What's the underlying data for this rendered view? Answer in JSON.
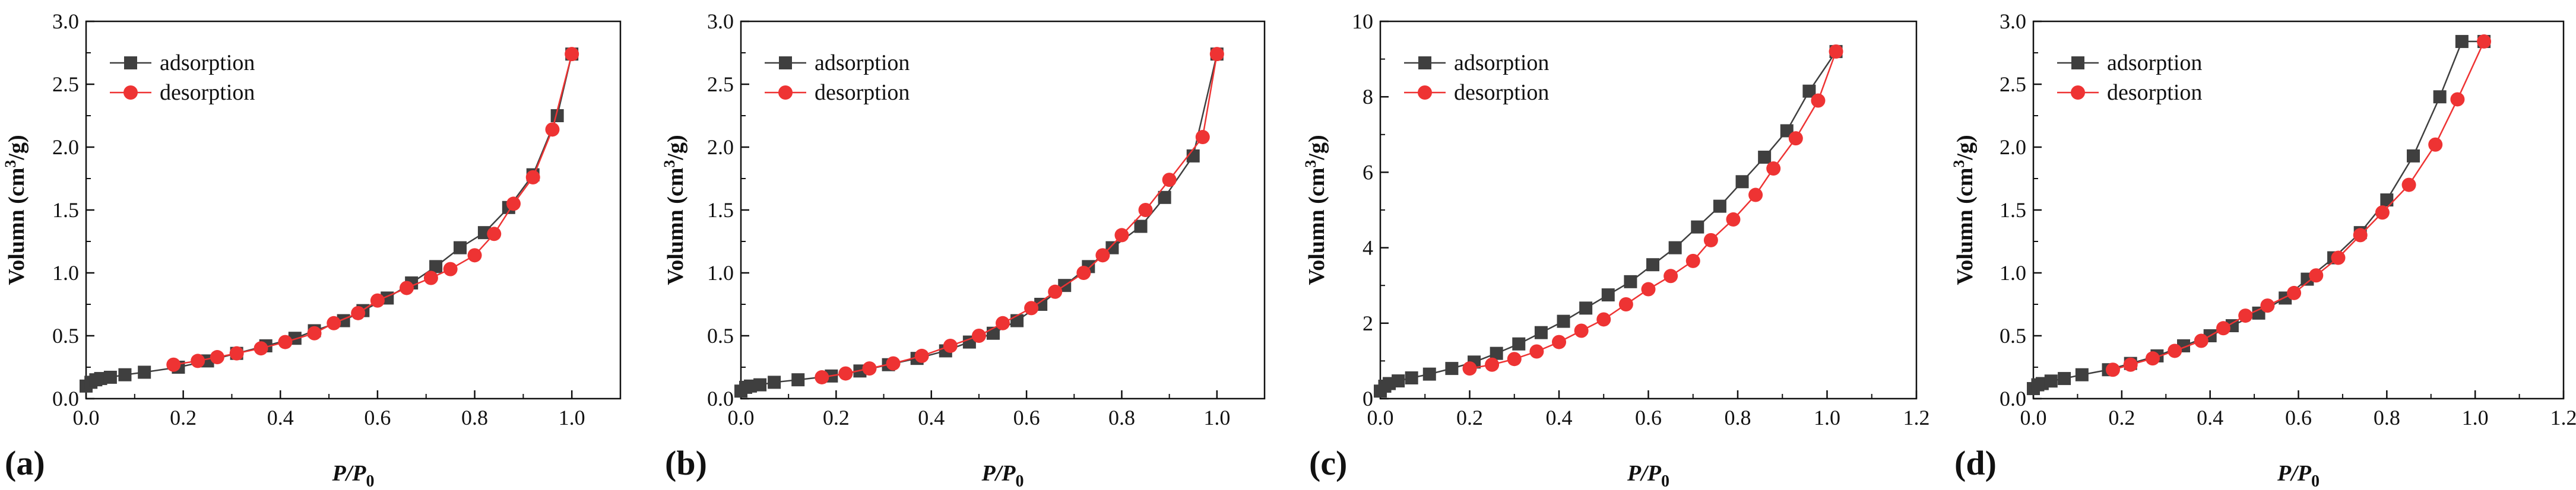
{
  "colors": {
    "adsorption": "#3f3f3f",
    "desorption": "#ee3333",
    "axis": "#111111"
  },
  "chart_data": [
    {
      "type": "line",
      "panel_label": "(a)",
      "xlabel": "P/P0",
      "xlabel_italic": "P/P",
      "xlabel_sub": "0",
      "ylabel": "Volumn (cm3/g)",
      "ylabel_pre": "Volumn (cm",
      "ylabel_sup": "3",
      "ylabel_post": "/g)",
      "xlim": [
        0,
        1.1
      ],
      "ylim": [
        0,
        3.0
      ],
      "xticks": [
        "0.0",
        "0.2",
        "0.4",
        "0.6",
        "0.8",
        "1.0"
      ],
      "yticks": [
        "0.0",
        "0.5",
        "1.0",
        "1.5",
        "2.0",
        "2.5",
        "3.0"
      ],
      "legend": [
        "adsorption",
        "desorption"
      ],
      "series": [
        {
          "name": "adsorption",
          "marker": "square",
          "x": [
            0.0,
            0.01,
            0.02,
            0.03,
            0.05,
            0.08,
            0.12,
            0.19,
            0.25,
            0.31,
            0.37,
            0.43,
            0.47,
            0.53,
            0.57,
            0.62,
            0.67,
            0.72,
            0.77,
            0.82,
            0.87,
            0.92,
            0.97,
            1.0
          ],
          "y": [
            0.1,
            0.13,
            0.15,
            0.16,
            0.17,
            0.19,
            0.21,
            0.25,
            0.3,
            0.36,
            0.42,
            0.48,
            0.54,
            0.62,
            0.7,
            0.8,
            0.92,
            1.05,
            1.2,
            1.32,
            1.52,
            1.78,
            2.25,
            2.74
          ]
        },
        {
          "name": "desorption",
          "marker": "circle",
          "x": [
            1.0,
            0.96,
            0.92,
            0.88,
            0.84,
            0.8,
            0.75,
            0.71,
            0.66,
            0.6,
            0.56,
            0.51,
            0.47,
            0.41,
            0.36,
            0.31,
            0.27,
            0.23,
            0.18
          ],
          "y": [
            2.74,
            2.14,
            1.76,
            1.55,
            1.31,
            1.14,
            1.03,
            0.96,
            0.88,
            0.78,
            0.68,
            0.6,
            0.52,
            0.45,
            0.4,
            0.36,
            0.33,
            0.3,
            0.27
          ]
        }
      ]
    },
    {
      "type": "line",
      "panel_label": "(b)",
      "xlabel": "P/P0",
      "xlabel_italic": "P/P",
      "xlabel_sub": "0",
      "ylabel": "Volumn (cm3/g)",
      "ylabel_pre": "Volumn (cm",
      "ylabel_sup": "3",
      "ylabel_post": "/g)",
      "xlim": [
        0,
        1.1
      ],
      "ylim": [
        0,
        3.0
      ],
      "xticks": [
        "0.0",
        "0.2",
        "0.4",
        "0.6",
        "0.8",
        "1.0"
      ],
      "yticks": [
        "0.0",
        "0.5",
        "1.0",
        "1.5",
        "2.0",
        "2.5",
        "3.0"
      ],
      "legend": [
        "adsorption",
        "desorption"
      ],
      "series": [
        {
          "name": "adsorption",
          "marker": "square",
          "x": [
            0.0,
            0.01,
            0.02,
            0.04,
            0.07,
            0.12,
            0.19,
            0.25,
            0.31,
            0.37,
            0.43,
            0.48,
            0.53,
            0.58,
            0.63,
            0.68,
            0.73,
            0.78,
            0.84,
            0.89,
            0.95,
            1.0
          ],
          "y": [
            0.06,
            0.09,
            0.1,
            0.11,
            0.13,
            0.15,
            0.18,
            0.22,
            0.27,
            0.32,
            0.38,
            0.45,
            0.52,
            0.62,
            0.75,
            0.9,
            1.05,
            1.2,
            1.37,
            1.6,
            1.93,
            2.74
          ]
        },
        {
          "name": "desorption",
          "marker": "circle",
          "x": [
            1.0,
            0.97,
            0.9,
            0.85,
            0.8,
            0.76,
            0.72,
            0.66,
            0.61,
            0.55,
            0.5,
            0.44,
            0.38,
            0.32,
            0.27,
            0.22,
            0.17
          ],
          "y": [
            2.74,
            2.08,
            1.74,
            1.5,
            1.3,
            1.14,
            1.0,
            0.85,
            0.72,
            0.6,
            0.5,
            0.42,
            0.34,
            0.28,
            0.24,
            0.2,
            0.17
          ]
        }
      ]
    },
    {
      "type": "line",
      "panel_label": "(c)",
      "xlabel": "P/P0",
      "xlabel_italic": "P/P",
      "xlabel_sub": "0",
      "ylabel": "Volumn (cm3/g)",
      "ylabel_pre": "Volumn (cm",
      "ylabel_sup": "3",
      "ylabel_post": "/g)",
      "xlim": [
        0,
        1.2
      ],
      "ylim": [
        0,
        10
      ],
      "xticks": [
        "0.0",
        "0.2",
        "0.4",
        "0.6",
        "0.8",
        "1.0",
        "1.2"
      ],
      "yticks": [
        "0",
        "2",
        "4",
        "6",
        "8",
        "10"
      ],
      "legend": [
        "adsorption",
        "desorption"
      ],
      "series": [
        {
          "name": "adsorption",
          "marker": "square",
          "x": [
            0.0,
            0.01,
            0.02,
            0.04,
            0.07,
            0.11,
            0.16,
            0.21,
            0.26,
            0.31,
            0.36,
            0.41,
            0.46,
            0.51,
            0.56,
            0.61,
            0.66,
            0.71,
            0.76,
            0.81,
            0.86,
            0.91,
            0.96,
            1.02
          ],
          "y": [
            0.2,
            0.33,
            0.4,
            0.47,
            0.55,
            0.65,
            0.8,
            0.97,
            1.2,
            1.45,
            1.75,
            2.05,
            2.4,
            2.75,
            3.1,
            3.55,
            4.0,
            4.55,
            5.1,
            5.75,
            6.4,
            7.1,
            8.15,
            9.2
          ]
        },
        {
          "name": "desorption",
          "marker": "circle",
          "x": [
            1.02,
            0.98,
            0.93,
            0.88,
            0.84,
            0.79,
            0.74,
            0.7,
            0.65,
            0.6,
            0.55,
            0.5,
            0.45,
            0.4,
            0.35,
            0.3,
            0.25,
            0.2
          ],
          "y": [
            9.2,
            7.9,
            6.9,
            6.1,
            5.4,
            4.75,
            4.2,
            3.65,
            3.25,
            2.9,
            2.5,
            2.1,
            1.8,
            1.5,
            1.25,
            1.05,
            0.9,
            0.8
          ]
        }
      ]
    },
    {
      "type": "line",
      "panel_label": "(d)",
      "xlabel": "P/P0",
      "xlabel_italic": "P/P",
      "xlabel_sub": "0",
      "ylabel": "Volumn (cm3/g)",
      "ylabel_pre": "Volumn (cm",
      "ylabel_sup": "3",
      "ylabel_post": "/g)",
      "xlim": [
        0,
        1.2
      ],
      "ylim": [
        0,
        3.0
      ],
      "xticks": [
        "0.0",
        "0.2",
        "0.4",
        "0.6",
        "0.8",
        "1.0",
        "1.2"
      ],
      "yticks": [
        "0.0",
        "0.5",
        "1.0",
        "1.5",
        "2.0",
        "2.5",
        "3.0"
      ],
      "legend": [
        "adsorption",
        "desorption"
      ],
      "series": [
        {
          "name": "adsorption",
          "marker": "square",
          "x": [
            0.0,
            0.01,
            0.02,
            0.04,
            0.07,
            0.11,
            0.17,
            0.22,
            0.28,
            0.34,
            0.4,
            0.45,
            0.51,
            0.57,
            0.62,
            0.68,
            0.74,
            0.8,
            0.86,
            0.92,
            0.97,
            1.02
          ],
          "y": [
            0.08,
            0.11,
            0.12,
            0.14,
            0.16,
            0.19,
            0.23,
            0.28,
            0.34,
            0.42,
            0.5,
            0.58,
            0.68,
            0.8,
            0.95,
            1.12,
            1.32,
            1.58,
            1.93,
            2.4,
            2.84,
            2.84
          ]
        },
        {
          "name": "desorption",
          "marker": "circle",
          "x": [
            1.02,
            0.96,
            0.91,
            0.85,
            0.79,
            0.74,
            0.69,
            0.64,
            0.59,
            0.53,
            0.48,
            0.43,
            0.38,
            0.32,
            0.27,
            0.22,
            0.18
          ],
          "y": [
            2.84,
            2.38,
            2.02,
            1.7,
            1.48,
            1.3,
            1.12,
            0.98,
            0.84,
            0.74,
            0.66,
            0.56,
            0.46,
            0.38,
            0.32,
            0.27,
            0.23
          ]
        }
      ]
    }
  ]
}
